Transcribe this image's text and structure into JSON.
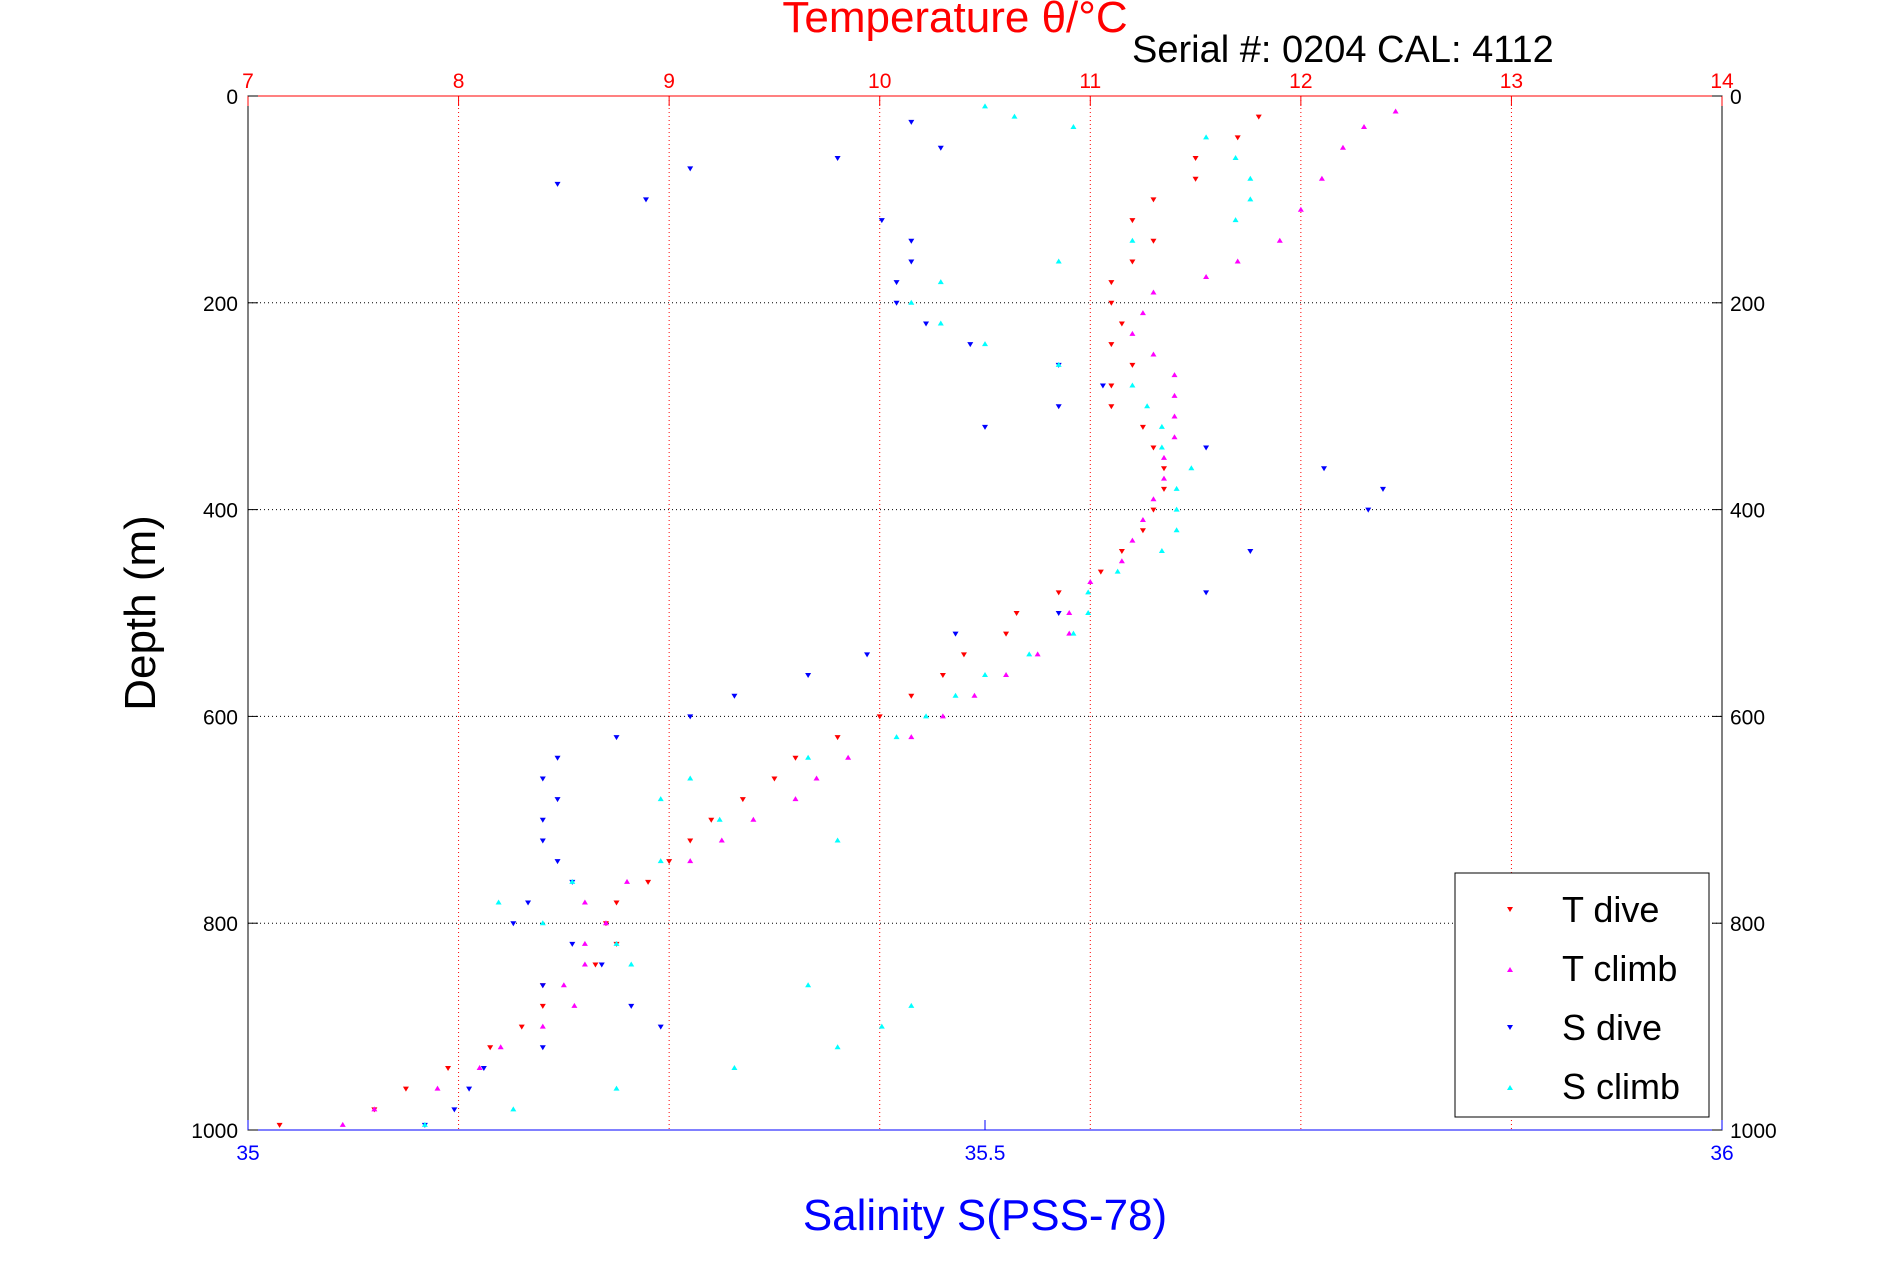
{
  "chart_data": {
    "type": "scatter",
    "title": "Temperature θ/°C",
    "subtitle": "Serial #: 0204  CAL: 4112",
    "xlabel": "Salinity S(PSS-78)",
    "ylabel": "Depth (m)",
    "salinity_axis": {
      "range": [
        35,
        36
      ],
      "ticks": [
        "35",
        "35.5",
        "36"
      ]
    },
    "temperature_axis": {
      "range": [
        7,
        14
      ],
      "ticks": [
        "7",
        "8",
        "9",
        "10",
        "11",
        "12",
        "13",
        "14"
      ]
    },
    "depth_axis": {
      "range": [
        0,
        1000
      ],
      "reversed": true,
      "ticks": [
        "0",
        "200",
        "400",
        "600",
        "800",
        "1000"
      ]
    },
    "grid": true,
    "legend_position": "bottom-right",
    "series": [
      {
        "name": "T dive",
        "variable": "temperature",
        "color": "#ff0000",
        "marker": "triangle-down",
        "points": [
          [
            11.8,
            20
          ],
          [
            11.7,
            40
          ],
          [
            11.5,
            60
          ],
          [
            11.5,
            80
          ],
          [
            11.3,
            100
          ],
          [
            11.2,
            120
          ],
          [
            11.3,
            140
          ],
          [
            11.2,
            160
          ],
          [
            11.1,
            180
          ],
          [
            11.1,
            200
          ],
          [
            11.15,
            220
          ],
          [
            11.1,
            240
          ],
          [
            11.2,
            260
          ],
          [
            11.1,
            280
          ],
          [
            11.1,
            300
          ],
          [
            11.25,
            320
          ],
          [
            11.3,
            340
          ],
          [
            11.35,
            360
          ],
          [
            11.35,
            380
          ],
          [
            11.3,
            400
          ],
          [
            11.25,
            420
          ],
          [
            11.15,
            440
          ],
          [
            11.05,
            460
          ],
          [
            10.85,
            480
          ],
          [
            10.65,
            500
          ],
          [
            10.6,
            520
          ],
          [
            10.4,
            540
          ],
          [
            10.3,
            560
          ],
          [
            10.15,
            580
          ],
          [
            10.0,
            600
          ],
          [
            9.8,
            620
          ],
          [
            9.6,
            640
          ],
          [
            9.5,
            660
          ],
          [
            9.35,
            680
          ],
          [
            9.2,
            700
          ],
          [
            9.1,
            720
          ],
          [
            9.0,
            740
          ],
          [
            8.9,
            760
          ],
          [
            8.75,
            780
          ],
          [
            8.7,
            800
          ],
          [
            8.75,
            820
          ],
          [
            8.65,
            840
          ],
          [
            8.4,
            860
          ],
          [
            8.4,
            880
          ],
          [
            8.3,
            900
          ],
          [
            8.15,
            920
          ],
          [
            7.95,
            940
          ],
          [
            7.75,
            960
          ],
          [
            7.6,
            980
          ],
          [
            7.15,
            995
          ]
        ]
      },
      {
        "name": "T climb",
        "variable": "temperature",
        "color": "#ff00ff",
        "marker": "triangle-up",
        "points": [
          [
            12.45,
            15
          ],
          [
            12.3,
            30
          ],
          [
            12.2,
            50
          ],
          [
            12.1,
            80
          ],
          [
            12.0,
            110
          ],
          [
            11.9,
            140
          ],
          [
            11.7,
            160
          ],
          [
            11.55,
            175
          ],
          [
            11.3,
            190
          ],
          [
            11.25,
            210
          ],
          [
            11.2,
            230
          ],
          [
            11.3,
            250
          ],
          [
            11.4,
            270
          ],
          [
            11.4,
            290
          ],
          [
            11.4,
            310
          ],
          [
            11.4,
            330
          ],
          [
            11.35,
            350
          ],
          [
            11.35,
            370
          ],
          [
            11.3,
            390
          ],
          [
            11.25,
            410
          ],
          [
            11.2,
            430
          ],
          [
            11.15,
            450
          ],
          [
            11.0,
            470
          ],
          [
            10.9,
            500
          ],
          [
            10.9,
            520
          ],
          [
            10.75,
            540
          ],
          [
            10.6,
            560
          ],
          [
            10.45,
            580
          ],
          [
            10.3,
            600
          ],
          [
            10.15,
            620
          ],
          [
            9.85,
            640
          ],
          [
            9.7,
            660
          ],
          [
            9.6,
            680
          ],
          [
            9.4,
            700
          ],
          [
            9.25,
            720
          ],
          [
            9.1,
            740
          ],
          [
            8.8,
            760
          ],
          [
            8.6,
            780
          ],
          [
            8.7,
            800
          ],
          [
            8.6,
            820
          ],
          [
            8.6,
            840
          ],
          [
            8.5,
            860
          ],
          [
            8.55,
            880
          ],
          [
            8.4,
            900
          ],
          [
            8.2,
            920
          ],
          [
            8.1,
            940
          ],
          [
            7.9,
            960
          ],
          [
            7.6,
            980
          ],
          [
            7.45,
            995
          ]
        ]
      },
      {
        "name": "S dive",
        "variable": "salinity",
        "color": "#0000ff",
        "marker": "triangle-down",
        "points": [
          [
            35.45,
            25
          ],
          [
            35.47,
            50
          ],
          [
            35.4,
            60
          ],
          [
            35.3,
            70
          ],
          [
            35.21,
            85
          ],
          [
            35.27,
            100
          ],
          [
            35.43,
            120
          ],
          [
            35.45,
            140
          ],
          [
            35.45,
            160
          ],
          [
            35.44,
            180
          ],
          [
            35.44,
            200
          ],
          [
            35.46,
            220
          ],
          [
            35.49,
            240
          ],
          [
            35.55,
            260
          ],
          [
            35.58,
            280
          ],
          [
            35.55,
            300
          ],
          [
            35.5,
            320
          ],
          [
            35.65,
            340
          ],
          [
            35.73,
            360
          ],
          [
            35.77,
            380
          ],
          [
            35.76,
            400
          ],
          [
            35.68,
            440
          ],
          [
            35.65,
            480
          ],
          [
            35.55,
            500
          ],
          [
            35.48,
            520
          ],
          [
            35.42,
            540
          ],
          [
            35.38,
            560
          ],
          [
            35.33,
            580
          ],
          [
            35.3,
            600
          ],
          [
            35.25,
            620
          ],
          [
            35.21,
            640
          ],
          [
            35.2,
            660
          ],
          [
            35.21,
            680
          ],
          [
            35.2,
            700
          ],
          [
            35.2,
            720
          ],
          [
            35.21,
            740
          ],
          [
            35.22,
            760
          ],
          [
            35.19,
            780
          ],
          [
            35.18,
            800
          ],
          [
            35.22,
            820
          ],
          [
            35.24,
            840
          ],
          [
            35.2,
            860
          ],
          [
            35.26,
            880
          ],
          [
            35.28,
            900
          ],
          [
            35.2,
            920
          ],
          [
            35.16,
            940
          ],
          [
            35.15,
            960
          ],
          [
            35.14,
            980
          ],
          [
            35.12,
            995
          ]
        ]
      },
      {
        "name": "S climb",
        "variable": "salinity",
        "color": "#00ffff",
        "marker": "triangle-up",
        "points": [
          [
            35.5,
            10
          ],
          [
            35.52,
            20
          ],
          [
            35.56,
            30
          ],
          [
            35.65,
            40
          ],
          [
            35.67,
            60
          ],
          [
            35.68,
            80
          ],
          [
            35.68,
            100
          ],
          [
            35.67,
            120
          ],
          [
            35.6,
            140
          ],
          [
            35.55,
            160
          ],
          [
            35.47,
            180
          ],
          [
            35.45,
            200
          ],
          [
            35.47,
            220
          ],
          [
            35.5,
            240
          ],
          [
            35.55,
            260
          ],
          [
            35.6,
            280
          ],
          [
            35.61,
            300
          ],
          [
            35.62,
            320
          ],
          [
            35.62,
            340
          ],
          [
            35.64,
            360
          ],
          [
            35.63,
            380
          ],
          [
            35.63,
            400
          ],
          [
            35.63,
            420
          ],
          [
            35.62,
            440
          ],
          [
            35.59,
            460
          ],
          [
            35.57,
            480
          ],
          [
            35.57,
            500
          ],
          [
            35.56,
            520
          ],
          [
            35.53,
            540
          ],
          [
            35.5,
            560
          ],
          [
            35.48,
            580
          ],
          [
            35.46,
            600
          ],
          [
            35.44,
            620
          ],
          [
            35.38,
            640
          ],
          [
            35.3,
            660
          ],
          [
            35.28,
            680
          ],
          [
            35.32,
            700
          ],
          [
            35.4,
            720
          ],
          [
            35.28,
            740
          ],
          [
            35.22,
            760
          ],
          [
            35.17,
            780
          ],
          [
            35.2,
            800
          ],
          [
            35.25,
            820
          ],
          [
            35.26,
            840
          ],
          [
            35.38,
            860
          ],
          [
            35.45,
            880
          ],
          [
            35.43,
            900
          ],
          [
            35.4,
            920
          ],
          [
            35.33,
            940
          ],
          [
            35.25,
            960
          ],
          [
            35.18,
            980
          ],
          [
            35.12,
            995
          ]
        ]
      }
    ]
  }
}
